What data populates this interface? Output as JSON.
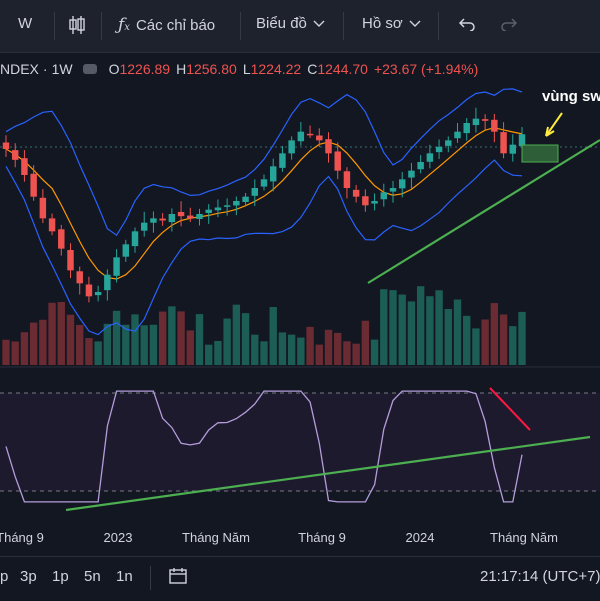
{
  "toolbar": {
    "interval": "W",
    "indicators_label": "Các chỉ báo",
    "chart_type_label": "Biểu đồ",
    "profile_label": "Hồ sơ"
  },
  "legend": {
    "symbol": "NDEX",
    "interval": "1W",
    "o_key": "O",
    "o_val": "1226.89",
    "h_key": "H",
    "h_val": "1256.80",
    "l_key": "L",
    "l_val": "1224.22",
    "c_key": "C",
    "c_val": "1244.70",
    "change": "+23.67 (+1.94%)"
  },
  "annotation": {
    "text": "vùng sw"
  },
  "time_axis": {
    "labels": [
      "Tháng 9",
      "2023",
      "Tháng Năm",
      "Tháng 9",
      "2024",
      "Tháng Năm"
    ]
  },
  "bottombar": {
    "ranges": [
      "3p",
      "1p",
      "5n",
      "1n"
    ],
    "first_fragment": "p",
    "clock": "21:17:14 (UTC+7)"
  },
  "colors": {
    "up": "#26a69a",
    "down": "#ef5350",
    "bb_upper_lower": "#2962ff",
    "bb_basis": "#ff9800",
    "rsi": "#b39ddb",
    "trendline": "#4caf50",
    "rsi_bearish_line": "#ff1744",
    "annotation_arrow": "#ffeb3b"
  },
  "chart_data": {
    "type": "candlestick",
    "title": "",
    "x_ticks": [
      "Tháng 9",
      "2023",
      "Tháng Năm",
      "Tháng 9",
      "2024",
      "Tháng Năm"
    ],
    "approx_close_path": [
      1210,
      1185,
      1150,
      1100,
      1050,
      1020,
      980,
      930,
      900,
      870,
      880,
      920,
      960,
      990,
      1020,
      1040,
      1050,
      1045,
      1060,
      1055,
      1050,
      1060,
      1070,
      1075,
      1080,
      1090,
      1100,
      1120,
      1140,
      1170,
      1200,
      1230,
      1250,
      1245,
      1230,
      1200,
      1160,
      1120,
      1100,
      1080,
      1090,
      1110,
      1120,
      1140,
      1160,
      1180,
      1200,
      1215,
      1230,
      1250,
      1270,
      1280,
      1275,
      1250,
      1200,
      1220,
      1244
    ],
    "indicators": [
      "Bollinger Bands",
      "RSI",
      "Volume"
    ],
    "grid": false
  }
}
